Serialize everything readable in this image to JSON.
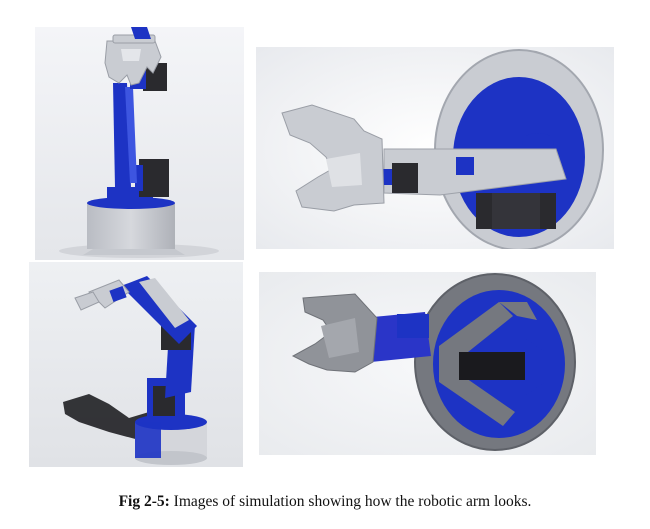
{
  "figure": {
    "caption_label": "Fig 2-5:",
    "caption_text": " Images of simulation showing how the robotic arm looks."
  },
  "colors": {
    "arm_blue": "#1d33c4",
    "part_grey": "#c9ccd2",
    "servo_black": "#2a2a2e"
  }
}
